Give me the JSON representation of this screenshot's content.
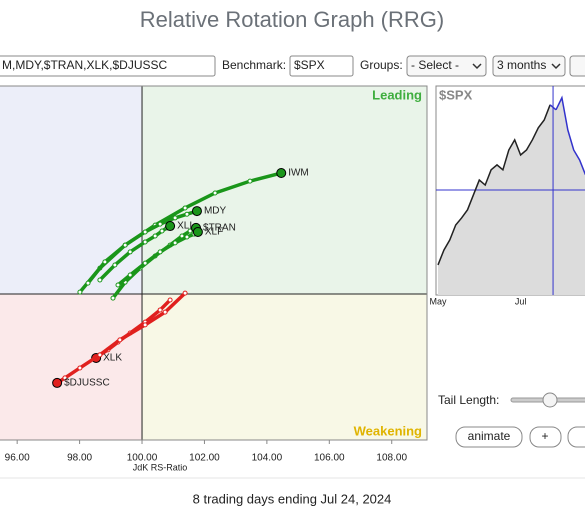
{
  "title": "Relative Rotation Graph (RRG)",
  "controls": {
    "symbols": "M,MDY,$TRAN,XLK,$DJUSSC",
    "benchmark_label": "Benchmark:",
    "benchmark": "$SPX",
    "groups_label": "Groups:",
    "groups": "- Select -",
    "period": "3 months",
    "tail_length_label": "Tail Length:",
    "buttons": [
      "animate",
      "+"
    ]
  },
  "chart_data": [
    {
      "type": "scatter",
      "x_label": "JdK RS-Ratio",
      "quadrant_labels": {
        "leading": "Leading",
        "weakening": "Weakening"
      },
      "center": 100,
      "xlim": [
        95.45,
        109.13
      ],
      "ylim": [
        95.32,
        106.67
      ],
      "xticks": [
        {
          "value": 96,
          "label": "96.00"
        },
        {
          "value": 98,
          "label": "98.00"
        },
        {
          "value": 100,
          "label": "100.00"
        },
        {
          "value": 102,
          "label": "102.00"
        },
        {
          "value": 104,
          "label": "104.00"
        },
        {
          "value": 106,
          "label": "106.00"
        },
        {
          "value": 108,
          "label": "108.00"
        }
      ],
      "series": [
        {
          "name": "IWM",
          "color": "#1a961a",
          "x": [
            98.01,
            98.65,
            99.46,
            100.42,
            101.38,
            102.34,
            103.46,
            104.46
          ],
          "values": [
            100.06,
            100.83,
            101.57,
            102.21,
            102.76,
            103.24,
            103.62,
            103.88
          ]
        },
        {
          "name": "MDY",
          "color": "#1a961a",
          "x": [
            98.27,
            98.81,
            99.46,
            100.1,
            100.58,
            101.06,
            101.44,
            101.76
          ],
          "values": [
            100.35,
            101.03,
            101.57,
            101.99,
            102.24,
            102.44,
            102.56,
            102.66
          ]
        },
        {
          "name": "XLI",
          "color": "#1a961a",
          "x": [
            98.65,
            99.13,
            99.62,
            100.1,
            100.42,
            100.64,
            100.8,
            100.9
          ],
          "values": [
            100.45,
            100.93,
            101.35,
            101.67,
            101.86,
            102.02,
            102.12,
            102.18
          ]
        },
        {
          "name": "$TRAN",
          "color": "#1a961a",
          "x": [
            99.07,
            99.46,
            99.94,
            100.42,
            100.9,
            101.28,
            101.54,
            101.73
          ],
          "values": [
            99.87,
            100.38,
            100.83,
            101.22,
            101.57,
            101.86,
            102.02,
            102.12
          ]
        },
        {
          "name": "XLF",
          "color": "#1a961a",
          "x": [
            99.23,
            99.62,
            100.1,
            100.58,
            101.06,
            101.44,
            101.67,
            101.79
          ],
          "values": [
            100.29,
            100.61,
            100.99,
            101.35,
            101.64,
            101.83,
            101.92,
            101.99
          ]
        },
        {
          "name": "XLK",
          "color": "#e0201e",
          "x": [
            100.9,
            100.58,
            100.1,
            99.62,
            99.23,
            98.91,
            98.65,
            98.53
          ],
          "values": [
            99.81,
            99.49,
            99.1,
            98.75,
            98.46,
            98.21,
            98.05,
            97.95
          ]
        },
        {
          "name": "$DJUSSC",
          "color": "#e0201e",
          "x": [
            101.38,
            100.74,
            100.1,
            99.29,
            98.65,
            98.01,
            97.53,
            97.28
          ],
          "values": [
            100.03,
            99.42,
            99.01,
            98.53,
            98.05,
            97.63,
            97.31,
            97.15
          ]
        }
      ]
    },
    {
      "type": "line",
      "title": "$SPX",
      "categories": [
        "May",
        null,
        null,
        null,
        null,
        null,
        null,
        null,
        null,
        null,
        null,
        null,
        null,
        null,
        "Jul",
        null,
        null,
        null,
        null,
        null,
        null,
        null,
        null,
        null,
        null,
        null
      ],
      "values": [
        5015,
        5072,
        5111,
        5168,
        5195,
        5226,
        5283,
        5340,
        5321,
        5379,
        5398,
        5379,
        5455,
        5494,
        5436,
        5455,
        5494,
        5540,
        5570,
        5628,
        5609,
        5655,
        5532,
        5455,
        5417,
        5360
      ],
      "color": "#222222",
      "highlight_color": "#3333cc",
      "highlight_from": 20,
      "ylim": [
        4900,
        5700
      ]
    }
  ],
  "footer": "8 trading days ending Jul 24, 2024"
}
